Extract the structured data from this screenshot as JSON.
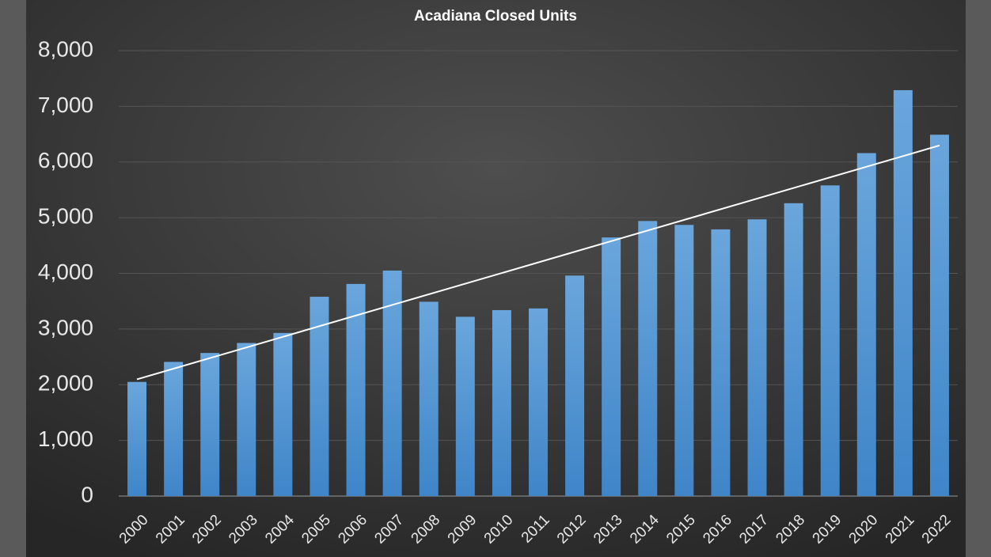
{
  "chart_data": {
    "type": "bar",
    "title": "Acadiana Closed Units",
    "categories": [
      "2000",
      "2001",
      "2002",
      "2003",
      "2004",
      "2005",
      "2006",
      "2007",
      "2008",
      "2009",
      "2010",
      "2011",
      "2012",
      "2013",
      "2014",
      "2015",
      "2016",
      "2017",
      "2018",
      "2019",
      "2020",
      "2021",
      "2022"
    ],
    "values": [
      2050,
      2410,
      2570,
      2750,
      2930,
      3580,
      3810,
      4050,
      3490,
      3220,
      3340,
      3370,
      3960,
      4645,
      4940,
      4870,
      4790,
      4970,
      5260,
      5580,
      6160,
      7290,
      6490
    ],
    "color": "#5b9bd5",
    "trendline": "linear",
    "ylim": [
      0,
      8000
    ],
    "yticks": [
      0,
      {
        "value": 1000,
        "label": "1,000"
      },
      {
        "value": 2000,
        "label": "2,000"
      },
      {
        "value": 3000,
        "label": "3,000"
      },
      {
        "value": 4000,
        "label": "4,000"
      },
      {
        "value": 5000,
        "label": "5,000"
      },
      {
        "value": 6000,
        "label": "6,000"
      },
      {
        "value": 7000,
        "label": "7,000"
      },
      {
        "value": 8000,
        "label": "8,000"
      }
    ],
    "grid": true
  }
}
